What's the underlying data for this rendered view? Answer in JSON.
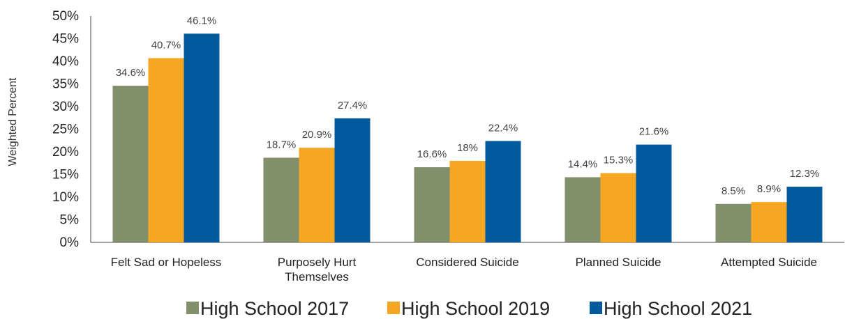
{
  "chart_data": {
    "type": "bar",
    "ylabel": "Weighted Percent",
    "ylim": [
      0,
      50
    ],
    "y_ticks": [
      "0%",
      "5%",
      "10%",
      "15%",
      "20%",
      "25%",
      "30%",
      "35%",
      "40%",
      "45%",
      "50%"
    ],
    "categories": [
      [
        "Felt Sad or Hopeless"
      ],
      [
        "Purposely Hurt",
        "Themselves"
      ],
      [
        "Considered Suicide"
      ],
      [
        "Planned Suicide"
      ],
      [
        "Attempted Suicide"
      ]
    ],
    "series": [
      {
        "name": "High School 2017",
        "color": "#81906A",
        "values": [
          34.6,
          18.7,
          16.6,
          14.4,
          8.5
        ],
        "labels": [
          "34.6%",
          "18.7%",
          "16.6%",
          "14.4%",
          "8.5%"
        ]
      },
      {
        "name": "High School 2019",
        "color": "#F5A623",
        "values": [
          40.7,
          20.9,
          18,
          15.3,
          8.9
        ],
        "labels": [
          "40.7%",
          "20.9%",
          "18%",
          "15.3%",
          "8.9%"
        ]
      },
      {
        "name": "High School 2021",
        "color": "#005A9C",
        "values": [
          46.1,
          27.4,
          22.4,
          21.6,
          12.3
        ],
        "labels": [
          "46.1%",
          "27.4%",
          "22.4%",
          "21.6%",
          "12.3%"
        ]
      }
    ],
    "grid": false,
    "legend_position": "bottom"
  }
}
